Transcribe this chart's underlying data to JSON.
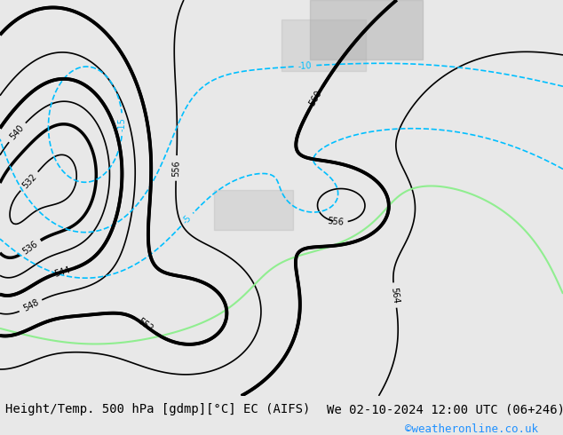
{
  "title_left": "Height/Temp. 500 hPa [gdmp][°C] EC (AIFS)",
  "title_right": "We 02-10-2024 12:00 UTC (06+246)",
  "credit": "©weatheronline.co.uk",
  "background_color": "#f0f0e8",
  "map_background": "#d4e8c2",
  "land_color": "#d4e8c2",
  "sea_color": "#d4e8c2",
  "height_contour_color": "#000000",
  "height_contour_thick_color": "#000000",
  "temp_contour_pos_color": "#ff8c00",
  "temp_contour_neg_color": "#00bfff",
  "temp_contour_special_color": "#90ee90",
  "footer_bg": "#e8e8e8",
  "footer_text_color": "#000000",
  "credit_color": "#1e90ff",
  "font_size_footer": 10,
  "font_size_labels": 8
}
